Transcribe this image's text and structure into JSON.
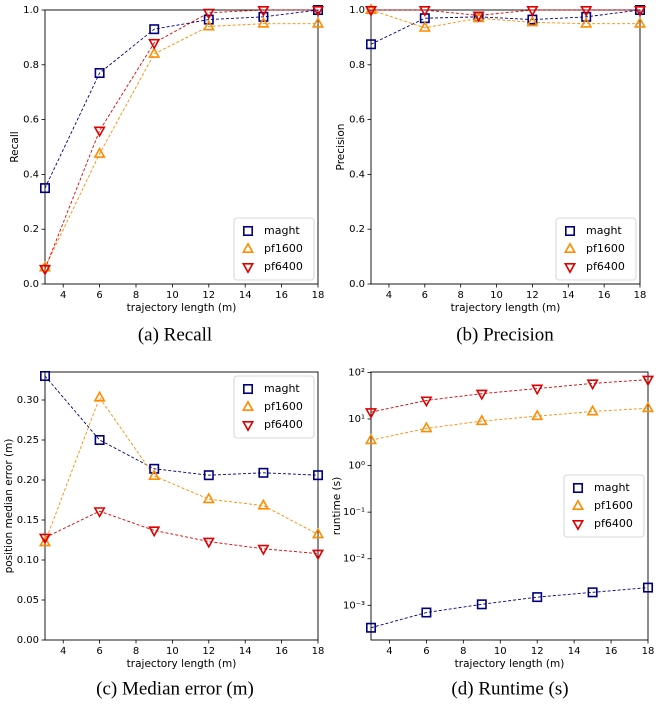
{
  "chart_data": [
    {
      "type": "line",
      "caption": "(a) Recall",
      "xlabel": "trajectory length (m)",
      "ylabel": "Recall",
      "x": [
        3,
        6,
        9,
        12,
        15,
        18
      ],
      "xlim": [
        3,
        18
      ],
      "xticks": [
        4,
        6,
        8,
        10,
        12,
        14,
        16,
        18
      ],
      "ylim": [
        0,
        1
      ],
      "yticks": [
        {
          "value": 0,
          "label": "0.0"
        },
        0.2,
        0.4,
        0.6,
        0.8,
        {
          "value": 1,
          "label": "1.0"
        }
      ],
      "legend": "lower right",
      "series": [
        {
          "name": "maght",
          "color": "#00007f",
          "marker": "square",
          "values": [
            0.35,
            0.77,
            0.93,
            0.965,
            0.975,
            1.0
          ]
        },
        {
          "name": "pf1600",
          "color": "#ff8c00",
          "marker": "triangle-up",
          "values": [
            0.06,
            0.475,
            0.84,
            0.94,
            0.95,
            0.95
          ]
        },
        {
          "name": "pf6400",
          "color": "#e00000",
          "marker": "triangle-down",
          "values": [
            0.055,
            0.56,
            0.88,
            0.99,
            1.0,
            1.0
          ]
        }
      ]
    },
    {
      "type": "line",
      "caption": "(b) Precision",
      "xlabel": "trajectory length (m)",
      "ylabel": "Precision",
      "x": [
        3,
        6,
        9,
        12,
        15,
        18
      ],
      "xlim": [
        3,
        18
      ],
      "xticks": [
        4,
        6,
        8,
        10,
        12,
        14,
        16,
        18
      ],
      "ylim": [
        0,
        1
      ],
      "yticks": [
        {
          "value": 0,
          "label": "0.0"
        },
        0.2,
        0.4,
        0.6,
        0.8,
        {
          "value": 1,
          "label": "1.0"
        }
      ],
      "legend": "lower right",
      "series": [
        {
          "name": "maght",
          "color": "#00007f",
          "marker": "square",
          "values": [
            0.875,
            0.97,
            0.975,
            0.965,
            0.975,
            1.0
          ]
        },
        {
          "name": "pf1600",
          "color": "#ff8c00",
          "marker": "triangle-up",
          "values": [
            1.0,
            0.935,
            0.97,
            0.955,
            0.95,
            0.95
          ]
        },
        {
          "name": "pf6400",
          "color": "#e00000",
          "marker": "triangle-down",
          "values": [
            1.0,
            1.0,
            0.98,
            1.0,
            1.0,
            1.0
          ]
        }
      ]
    },
    {
      "type": "line",
      "caption": "(c) Median error (m)",
      "xlabel": "trajectory length (m)",
      "ylabel": "position median error (m)",
      "x": [
        3,
        6,
        9,
        12,
        15,
        18
      ],
      "xlim": [
        3,
        18
      ],
      "xticks": [
        4,
        6,
        8,
        10,
        12,
        14,
        16,
        18
      ],
      "ylim": [
        0,
        0.335
      ],
      "yticks": [
        {
          "value": 0,
          "label": "0.00"
        },
        {
          "value": 0.05,
          "label": "0.05"
        },
        {
          "value": 0.1,
          "label": "0.10"
        },
        {
          "value": 0.15,
          "label": "0.15"
        },
        {
          "value": 0.2,
          "label": "0.20"
        },
        {
          "value": 0.25,
          "label": "0.25"
        },
        {
          "value": 0.3,
          "label": "0.30"
        }
      ],
      "legend": "upper right",
      "series": [
        {
          "name": "maght",
          "color": "#00007f",
          "marker": "square",
          "values": [
            0.33,
            0.25,
            0.214,
            0.206,
            0.209,
            0.206
          ]
        },
        {
          "name": "pf1600",
          "color": "#ff8c00",
          "marker": "triangle-up",
          "values": [
            0.122,
            0.303,
            0.205,
            0.176,
            0.168,
            0.132
          ]
        },
        {
          "name": "pf6400",
          "color": "#e00000",
          "marker": "triangle-down",
          "values": [
            0.128,
            0.161,
            0.137,
            0.123,
            0.114,
            0.108
          ]
        }
      ]
    },
    {
      "type": "line",
      "caption": "(d) Runtime (s)",
      "xlabel": "trajectory length (m)",
      "ylabel": "runtime (s)",
      "x": [
        3,
        6,
        9,
        12,
        15,
        18
      ],
      "xlim": [
        3,
        18
      ],
      "xticks": [
        4,
        6,
        8,
        10,
        12,
        14,
        16,
        18
      ],
      "yscale": "log",
      "ylim": [
        0.00018,
        102
      ],
      "yticks": [
        {
          "value": 0.001,
          "label": "10⁻³"
        },
        {
          "value": 0.01,
          "label": "10⁻²"
        },
        {
          "value": 0.1,
          "label": "10⁻¹"
        },
        {
          "value": 1,
          "label": "10⁰"
        },
        {
          "value": 10,
          "label": "10¹"
        },
        {
          "value": 100,
          "label": "10²"
        }
      ],
      "legend": "center right",
      "series": [
        {
          "name": "maght",
          "color": "#00007f",
          "marker": "square",
          "values": [
            0.00033,
            0.0007,
            0.00105,
            0.0015,
            0.0019,
            0.0024
          ]
        },
        {
          "name": "pf1600",
          "color": "#ff8c00",
          "marker": "triangle-up",
          "values": [
            3.5,
            6.3,
            9,
            11.5,
            14.5,
            17
          ]
        },
        {
          "name": "pf6400",
          "color": "#e00000",
          "marker": "triangle-down",
          "values": [
            14,
            25,
            35,
            45,
            58,
            70
          ]
        }
      ]
    }
  ]
}
